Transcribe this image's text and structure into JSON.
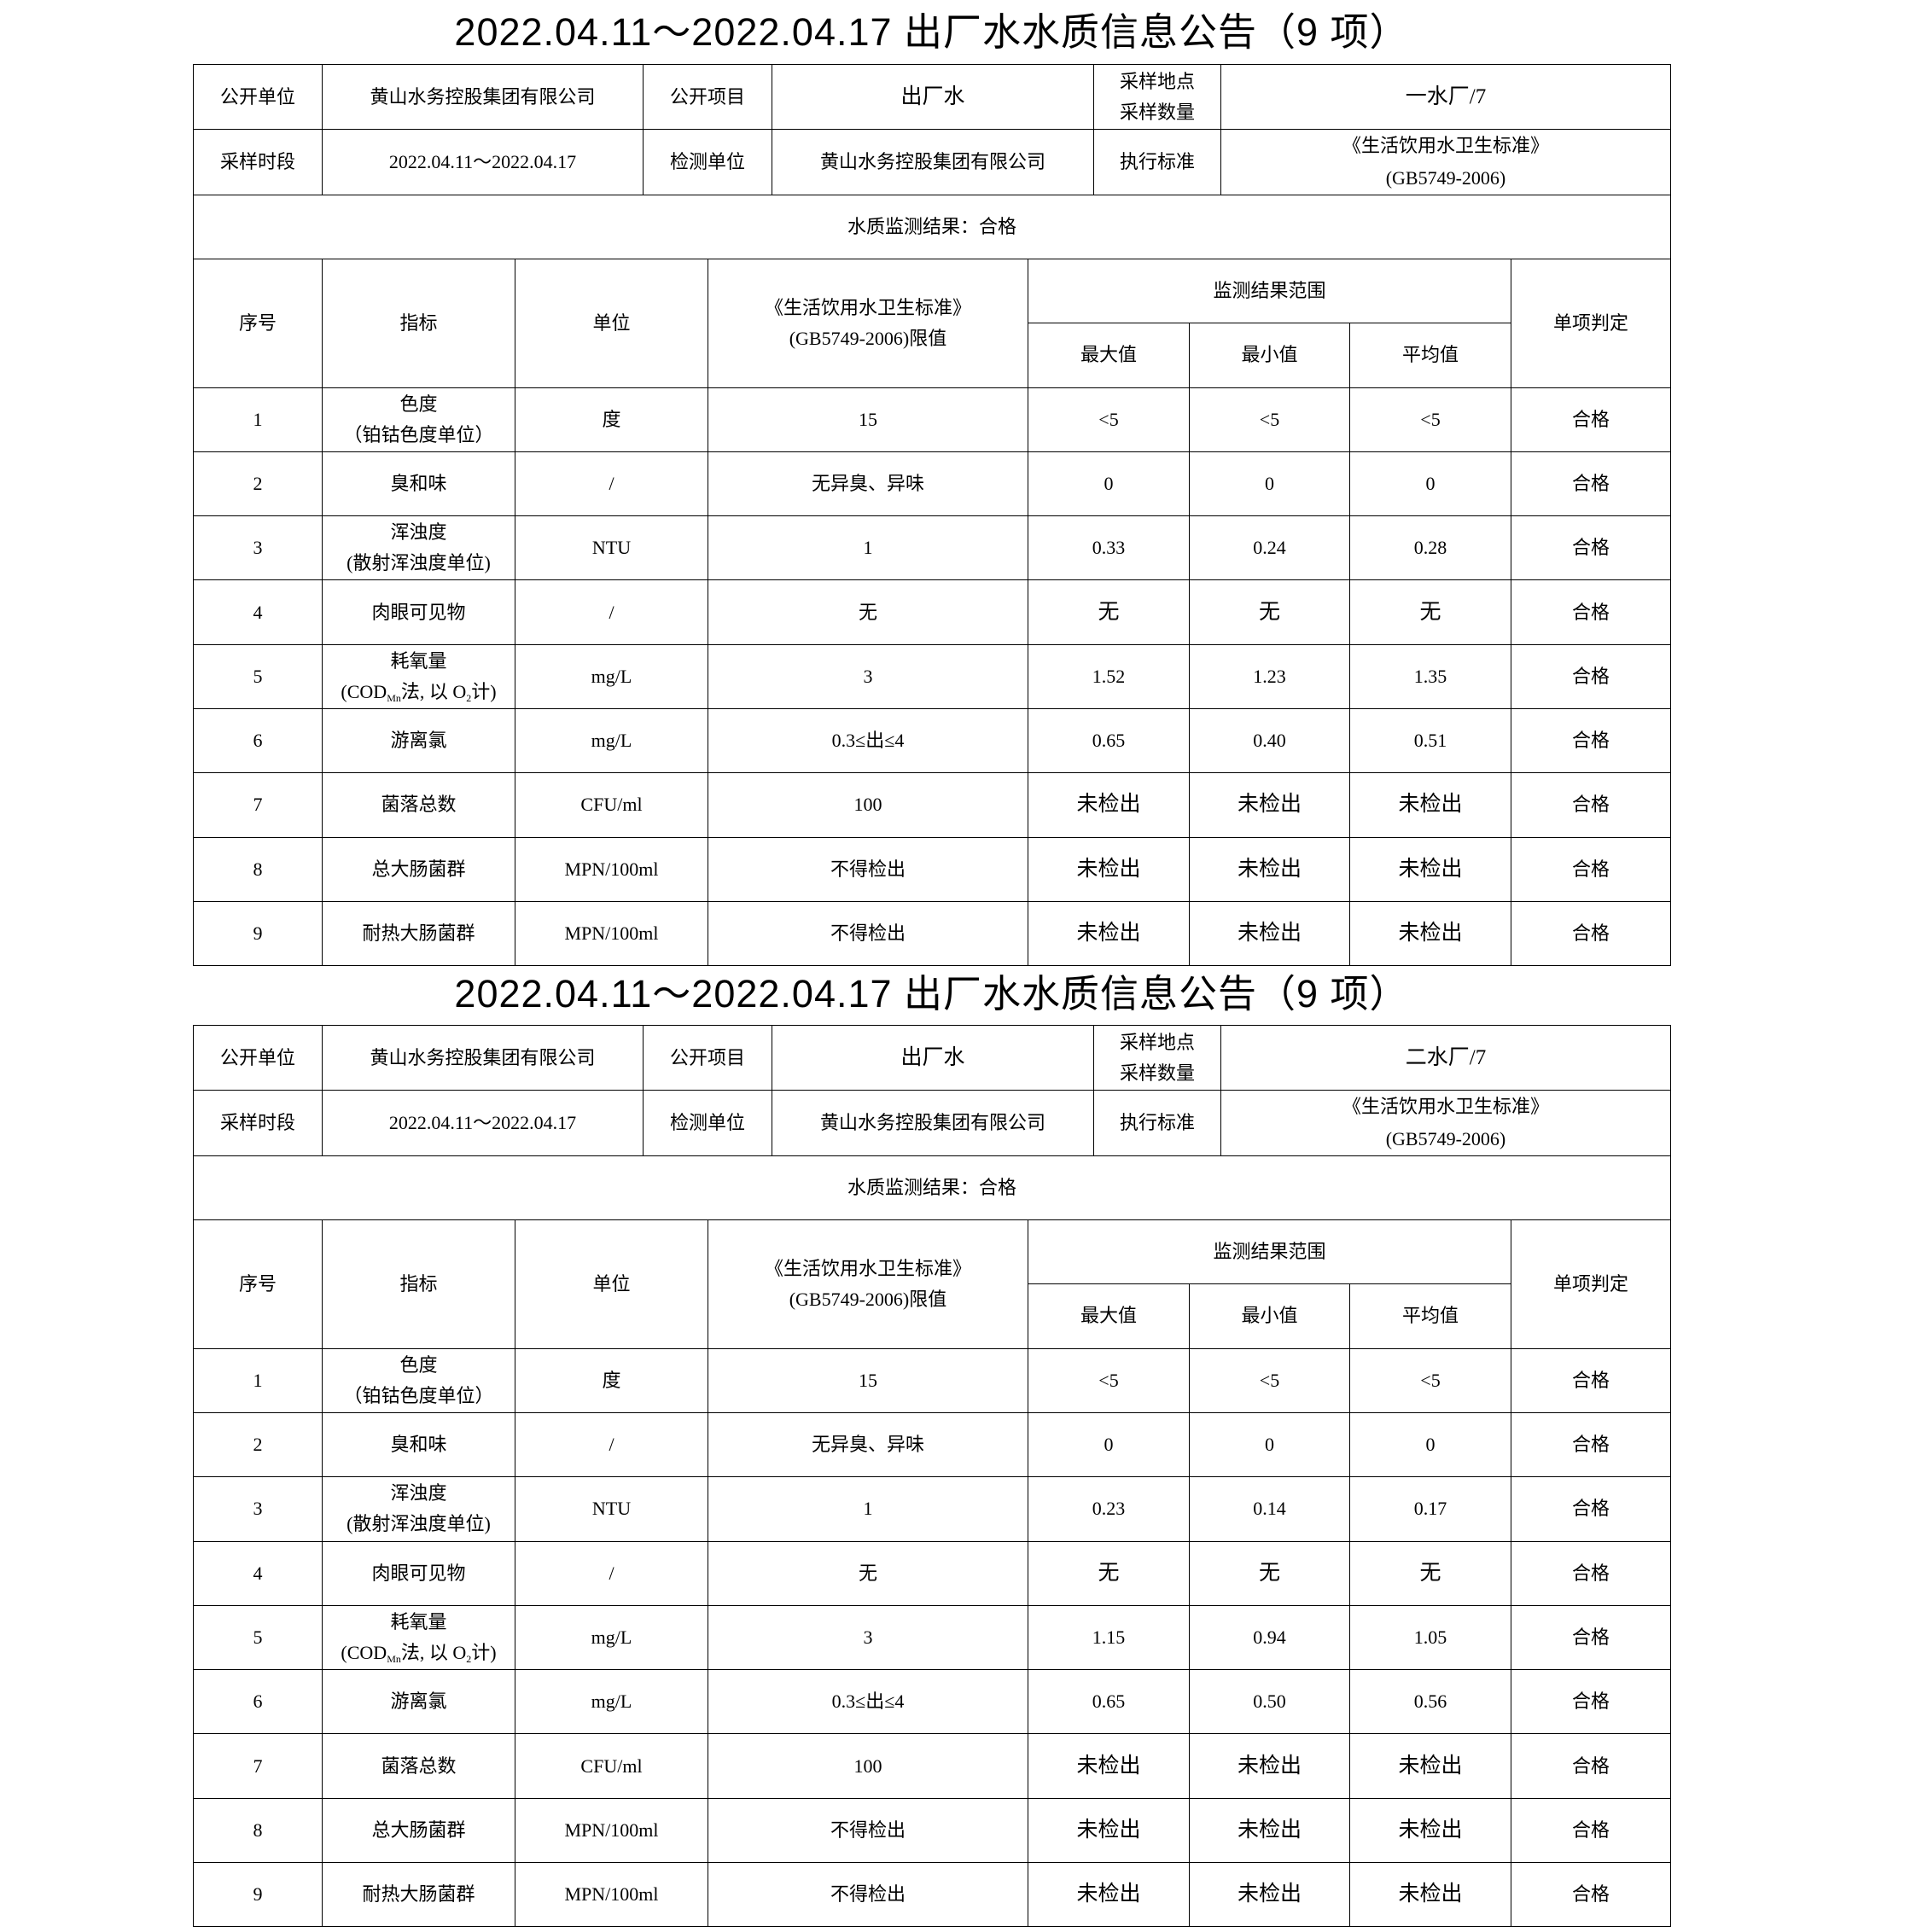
{
  "reports": [
    {
      "title": "2022.04.11～2022.04.17 出厂水水质信息公告（9 项）",
      "info": {
        "unit_label": "公开单位",
        "unit_value": "黄山水务控股集团有限公司",
        "item_label": "公开项目",
        "item_value": "出厂水",
        "site_label1": "采样地点",
        "site_label2": "采样数量",
        "site_value": "一水厂/7",
        "period_label": "采样时段",
        "period_value": "2022.04.11～2022.04.17",
        "lab_label": "检测单位",
        "lab_value": "黄山水务控股集团有限公司",
        "std_label": "执行标准",
        "std_value1": "《生活饮用水卫生标准》",
        "std_value2": "(GB5749-2006)"
      },
      "result_text": "水质监测结果：合格",
      "rows": [
        {
          "no": "1",
          "name1": "色度",
          "name2": "（铂钴色度单位）",
          "unit": "度",
          "limit": "15",
          "max": "<5",
          "min": "<5",
          "avg": "<5",
          "verdict": "合格"
        },
        {
          "no": "2",
          "name1": "臭和味",
          "name2": "",
          "unit": "/",
          "limit": "无异臭、异味",
          "max": "0",
          "min": "0",
          "avg": "0",
          "verdict": "合格"
        },
        {
          "no": "3",
          "name1": "浑浊度",
          "name2": "(散射浑浊度单位)",
          "unit": "NTU",
          "limit": "1",
          "max": "0.33",
          "min": "0.24",
          "avg": "0.28",
          "verdict": "合格"
        },
        {
          "no": "4",
          "name1": "肉眼可见物",
          "name2": "",
          "unit": "/",
          "limit": "无",
          "max": "无",
          "min": "无",
          "avg": "无",
          "verdict": "合格"
        },
        {
          "no": "5",
          "name1": "耗氧量",
          "name2_parts": [
            {
              "t": "(COD"
            },
            {
              "s": "Mn"
            },
            {
              "t": "法, 以 O"
            },
            {
              "s": "2"
            },
            {
              "t": "计)"
            }
          ],
          "unit": "mg/L",
          "limit": "3",
          "max": "1.52",
          "min": "1.23",
          "avg": "1.35",
          "verdict": "合格"
        },
        {
          "no": "6",
          "name1": "游离氯",
          "name2": "",
          "unit": "mg/L",
          "limit": "0.3≤出≤4",
          "max": "0.65",
          "min": "0.40",
          "avg": "0.51",
          "verdict": "合格"
        },
        {
          "no": "7",
          "name1": "菌落总数",
          "name2": "",
          "unit": "CFU/ml",
          "limit": "100",
          "max": "未检出",
          "min": "未检出",
          "avg": "未检出",
          "verdict": "合格"
        },
        {
          "no": "8",
          "name1": "总大肠菌群",
          "name2": "",
          "unit": "MPN/100ml",
          "limit": "不得检出",
          "max": "未检出",
          "min": "未检出",
          "avg": "未检出",
          "verdict": "合格"
        },
        {
          "no": "9",
          "name1": "耐热大肠菌群",
          "name2": "",
          "unit": "MPN/100ml",
          "limit": "不得检出",
          "max": "未检出",
          "min": "未检出",
          "avg": "未检出",
          "verdict": "合格"
        }
      ]
    },
    {
      "title": "2022.04.11～2022.04.17 出厂水水质信息公告（9 项）",
      "info": {
        "unit_label": "公开单位",
        "unit_value": "黄山水务控股集团有限公司",
        "item_label": "公开项目",
        "item_value": "出厂水",
        "site_label1": "采样地点",
        "site_label2": "采样数量",
        "site_value": "二水厂/7",
        "period_label": "采样时段",
        "period_value": "2022.04.11～2022.04.17",
        "lab_label": "检测单位",
        "lab_value": "黄山水务控股集团有限公司",
        "std_label": "执行标准",
        "std_value1": "《生活饮用水卫生标准》",
        "std_value2": "(GB5749-2006)"
      },
      "result_text": "水质监测结果：合格",
      "rows": [
        {
          "no": "1",
          "name1": "色度",
          "name2": "（铂钴色度单位）",
          "unit": "度",
          "limit": "15",
          "max": "<5",
          "min": "<5",
          "avg": "<5",
          "verdict": "合格"
        },
        {
          "no": "2",
          "name1": "臭和味",
          "name2": "",
          "unit": "/",
          "limit": "无异臭、异味",
          "max": "0",
          "min": "0",
          "avg": "0",
          "verdict": "合格"
        },
        {
          "no": "3",
          "name1": "浑浊度",
          "name2": "(散射浑浊度单位)",
          "unit": "NTU",
          "limit": "1",
          "max": "0.23",
          "min": "0.14",
          "avg": "0.17",
          "verdict": "合格"
        },
        {
          "no": "4",
          "name1": "肉眼可见物",
          "name2": "",
          "unit": "/",
          "limit": "无",
          "max": "无",
          "min": "无",
          "avg": "无",
          "verdict": "合格"
        },
        {
          "no": "5",
          "name1": "耗氧量",
          "name2_parts": [
            {
              "t": "(COD"
            },
            {
              "s": "Mn"
            },
            {
              "t": "法, 以 O"
            },
            {
              "s": "2"
            },
            {
              "t": "计)"
            }
          ],
          "unit": "mg/L",
          "limit": "3",
          "max": "1.15",
          "min": "0.94",
          "avg": "1.05",
          "verdict": "合格"
        },
        {
          "no": "6",
          "name1": "游离氯",
          "name2": "",
          "unit": "mg/L",
          "limit": "0.3≤出≤4",
          "max": "0.65",
          "min": "0.50",
          "avg": "0.56",
          "verdict": "合格"
        },
        {
          "no": "7",
          "name1": "菌落总数",
          "name2": "",
          "unit": "CFU/ml",
          "limit": "100",
          "max": "未检出",
          "min": "未检出",
          "avg": "未检出",
          "verdict": "合格"
        },
        {
          "no": "8",
          "name1": "总大肠菌群",
          "name2": "",
          "unit": "MPN/100ml",
          "limit": "不得检出",
          "max": "未检出",
          "min": "未检出",
          "avg": "未检出",
          "verdict": "合格"
        },
        {
          "no": "9",
          "name1": "耐热大肠菌群",
          "name2": "",
          "unit": "MPN/100ml",
          "limit": "不得检出",
          "max": "未检出",
          "min": "未检出",
          "avg": "未检出",
          "verdict": "合格"
        }
      ]
    }
  ],
  "headers": {
    "no": "序号",
    "name": "指标",
    "unit": "单位",
    "limit1": "《生活饮用水卫生标准》",
    "limit2": "(GB5749-2006)限值",
    "range": "监测结果范围",
    "max": "最大值",
    "min": "最小值",
    "avg": "平均值",
    "verdict": "单项判定"
  }
}
